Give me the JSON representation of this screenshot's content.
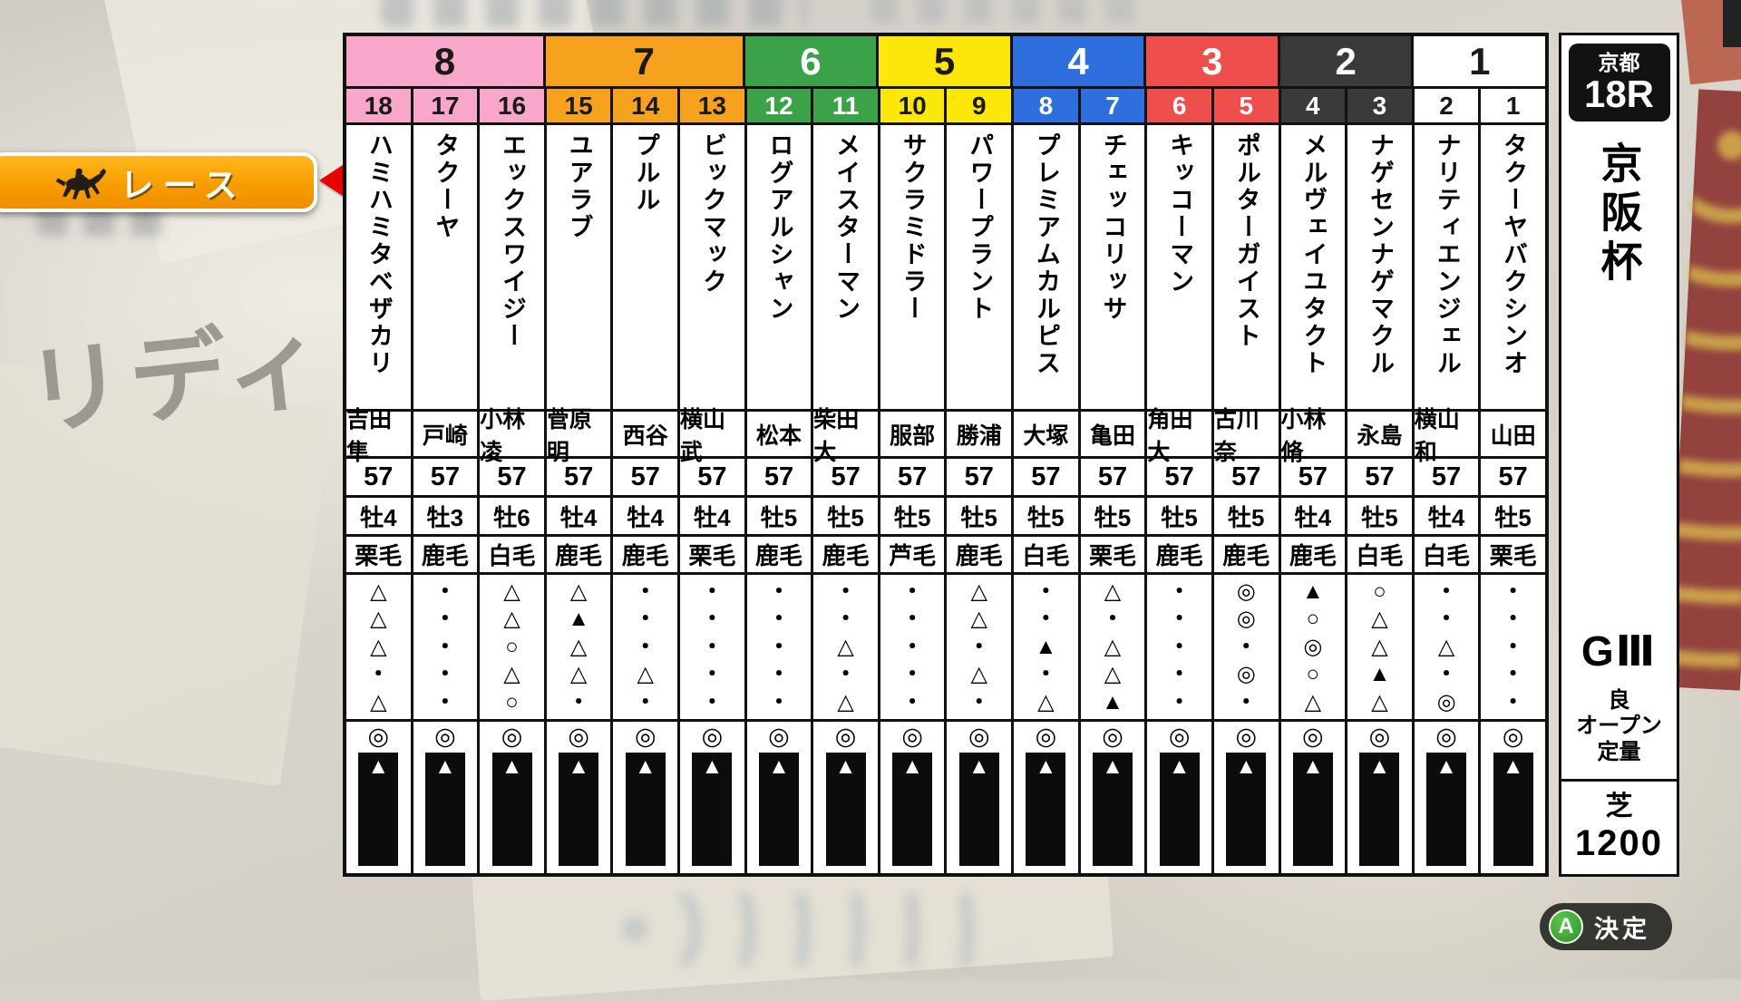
{
  "background": {
    "watermark": "リディ"
  },
  "menu": {
    "race_button_label": "レース"
  },
  "race_info": {
    "course": "京都",
    "race_no": "18R",
    "title": "京阪杯",
    "grade": "GⅢ",
    "track_condition": "良",
    "race_class": "オープン",
    "weight_rule": "定量",
    "surface": "芝",
    "distance": "1200"
  },
  "confirm": {
    "button_key": "A",
    "label": "決定"
  },
  "table": {
    "silk_mark": "◎",
    "frames": [
      {
        "no": "8",
        "span": 3,
        "color": "#f8a6c9",
        "text_color": "#1a1a1a"
      },
      {
        "no": "7",
        "span": 3,
        "color": "#f6a21f",
        "text_color": "#1a1a1a"
      },
      {
        "no": "6",
        "span": 2,
        "color": "#3ca24a",
        "text_color": "#ffffff"
      },
      {
        "no": "5",
        "span": 2,
        "color": "#fbe70a",
        "text_color": "#1a1a1a"
      },
      {
        "no": "4",
        "span": 2,
        "color": "#2f6fdd",
        "text_color": "#ffffff"
      },
      {
        "no": "3",
        "span": 2,
        "color": "#ee4f4c",
        "text_color": "#ffffff"
      },
      {
        "no": "2",
        "span": 2,
        "color": "#3a3a3a",
        "text_color": "#ffffff"
      },
      {
        "no": "1",
        "span": 2,
        "color": "#ffffff",
        "text_color": "#1a1a1a"
      }
    ],
    "horses": [
      {
        "num": "18",
        "frame": "8",
        "name": "ハミハミタベザカリ",
        "jockey": "吉田隼",
        "weight": "57",
        "sex_age": "牡4",
        "coat": "栗毛",
        "marks": [
          "△",
          "△",
          "△",
          "・",
          "△"
        ]
      },
      {
        "num": "17",
        "frame": "8",
        "name": "タクーヤ",
        "jockey": "戸崎",
        "weight": "57",
        "sex_age": "牡3",
        "coat": "鹿毛",
        "marks": [
          "・",
          "・",
          "・",
          "・",
          "・"
        ]
      },
      {
        "num": "16",
        "frame": "8",
        "name": "エックスワイジー",
        "jockey": "小林凌",
        "weight": "57",
        "sex_age": "牡6",
        "coat": "白毛",
        "marks": [
          "△",
          "△",
          "○",
          "△",
          "○"
        ]
      },
      {
        "num": "15",
        "frame": "7",
        "name": "ユアラブ",
        "jockey": "菅原明",
        "weight": "57",
        "sex_age": "牡4",
        "coat": "鹿毛",
        "marks": [
          "△",
          "▲",
          "△",
          "△",
          "・"
        ]
      },
      {
        "num": "14",
        "frame": "7",
        "name": "プルル",
        "jockey": "西谷",
        "weight": "57",
        "sex_age": "牡4",
        "coat": "鹿毛",
        "marks": [
          "・",
          "・",
          "・",
          "△",
          "・"
        ]
      },
      {
        "num": "13",
        "frame": "7",
        "name": "ビックマック",
        "jockey": "横山武",
        "weight": "57",
        "sex_age": "牡4",
        "coat": "栗毛",
        "marks": [
          "・",
          "・",
          "・",
          "・",
          "・"
        ]
      },
      {
        "num": "12",
        "frame": "6",
        "name": "ログアルシャン",
        "jockey": "松本",
        "weight": "57",
        "sex_age": "牡5",
        "coat": "鹿毛",
        "marks": [
          "・",
          "・",
          "・",
          "・",
          "・"
        ]
      },
      {
        "num": "11",
        "frame": "6",
        "name": "メイスターマン",
        "jockey": "柴田大",
        "weight": "57",
        "sex_age": "牡5",
        "coat": "鹿毛",
        "marks": [
          "・",
          "・",
          "△",
          "・",
          "△"
        ]
      },
      {
        "num": "10",
        "frame": "5",
        "name": "サクラミドラー",
        "jockey": "服部",
        "weight": "57",
        "sex_age": "牡5",
        "coat": "芦毛",
        "marks": [
          "・",
          "・",
          "・",
          "・",
          "・"
        ]
      },
      {
        "num": "9",
        "frame": "5",
        "name": "パワープラント",
        "jockey": "勝浦",
        "weight": "57",
        "sex_age": "牡5",
        "coat": "鹿毛",
        "marks": [
          "△",
          "△",
          "・",
          "△",
          "・"
        ]
      },
      {
        "num": "8",
        "frame": "4",
        "name": "プレミアムカルピス",
        "jockey": "大塚",
        "weight": "57",
        "sex_age": "牡5",
        "coat": "白毛",
        "marks": [
          "・",
          "・",
          "▲",
          "・",
          "△"
        ]
      },
      {
        "num": "7",
        "frame": "4",
        "name": "チェッコリッサ",
        "jockey": "亀田",
        "weight": "57",
        "sex_age": "牡5",
        "coat": "栗毛",
        "marks": [
          "△",
          "・",
          "△",
          "△",
          "▲"
        ]
      },
      {
        "num": "6",
        "frame": "3",
        "name": "キッコーマン",
        "jockey": "角田大",
        "weight": "57",
        "sex_age": "牡5",
        "coat": "鹿毛",
        "marks": [
          "・",
          "・",
          "・",
          "・",
          "・"
        ]
      },
      {
        "num": "5",
        "frame": "3",
        "name": "ポルターガイスト",
        "jockey": "古川奈",
        "weight": "57",
        "sex_age": "牡5",
        "coat": "鹿毛",
        "marks": [
          "◎",
          "◎",
          "・",
          "◎",
          "・"
        ]
      },
      {
        "num": "4",
        "frame": "2",
        "name": "メルヴェイユタクト",
        "jockey": "小林脩",
        "weight": "57",
        "sex_age": "牡4",
        "coat": "鹿毛",
        "marks": [
          "▲",
          "○",
          "◎",
          "○",
          "△"
        ]
      },
      {
        "num": "3",
        "frame": "2",
        "name": "ナゲセンナゲマクル",
        "jockey": "永島",
        "weight": "57",
        "sex_age": "牡5",
        "coat": "白毛",
        "marks": [
          "○",
          "△",
          "△",
          "▲",
          "△"
        ]
      },
      {
        "num": "2",
        "frame": "1",
        "name": "ナリティエンジェル",
        "jockey": "横山和",
        "weight": "57",
        "sex_age": "牡4",
        "coat": "白毛",
        "marks": [
          "・",
          "・",
          "△",
          "・",
          "◎"
        ]
      },
      {
        "num": "1",
        "frame": "1",
        "name": "タクーヤバクシンオ",
        "jockey": "山田",
        "weight": "57",
        "sex_age": "牡5",
        "coat": "栗毛",
        "marks": [
          "・",
          "・",
          "・",
          "・",
          "・"
        ]
      }
    ]
  }
}
